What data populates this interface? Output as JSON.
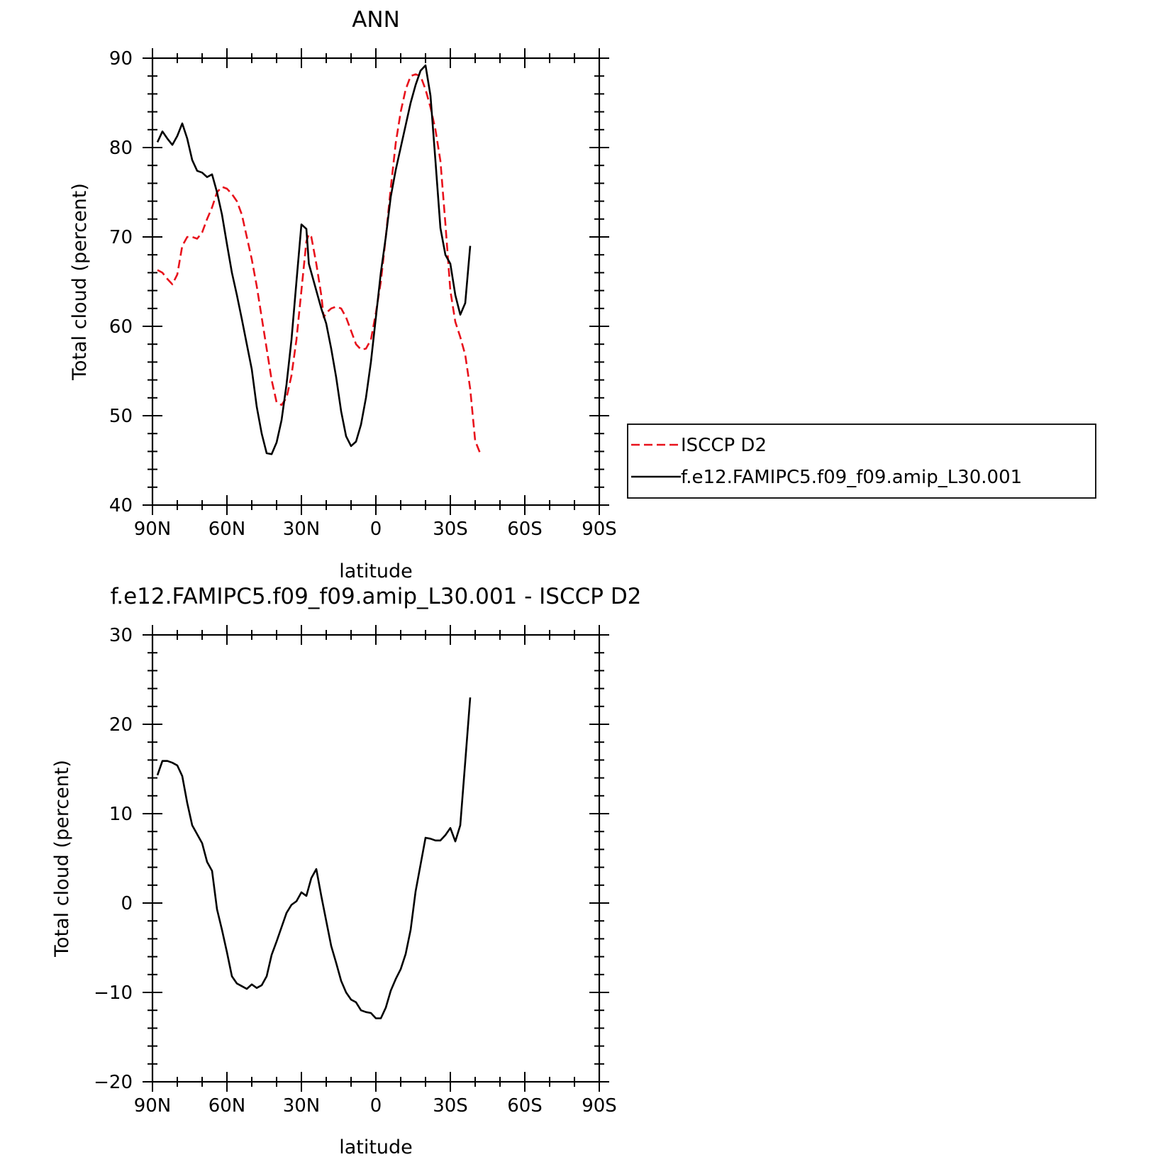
{
  "colors": {
    "isccp": "#e8111b",
    "model": "#000000",
    "axis": "#000000"
  },
  "chart_data": [
    {
      "type": "line",
      "title": "ANN",
      "xlabel": "latitude",
      "ylabel": "Total cloud (percent)",
      "xlim": [
        90,
        -90
      ],
      "ylim": [
        40,
        90
      ],
      "x_ticks": [
        {
          "value": 90,
          "label": "90N"
        },
        {
          "value": 60,
          "label": "60N"
        },
        {
          "value": 30,
          "label": "30N"
        },
        {
          "value": 0,
          "label": "0"
        },
        {
          "value": -30,
          "label": "30S"
        },
        {
          "value": -60,
          "label": "60S"
        },
        {
          "value": -90,
          "label": "90S"
        }
      ],
      "y_ticks": [
        40,
        50,
        60,
        70,
        80,
        90
      ],
      "legend": {
        "placement": "right"
      },
      "series": [
        {
          "name": "ISCCP D2",
          "color": "#e8111b",
          "dash": "dashed",
          "points": [
            [
              88,
              66.3
            ],
            [
              86,
              66.0
            ],
            [
              84,
              65.3
            ],
            [
              82,
              64.7
            ],
            [
              80,
              65.8
            ],
            [
              78,
              69.0
            ],
            [
              76,
              70.0
            ],
            [
              74,
              70.0
            ],
            [
              72,
              69.8
            ],
            [
              70,
              70.5
            ],
            [
              68,
              72.0
            ],
            [
              66,
              73.3
            ],
            [
              64,
              75.0
            ],
            [
              62,
              75.6
            ],
            [
              60,
              75.4
            ],
            [
              58,
              74.8
            ],
            [
              56,
              74.0
            ],
            [
              54,
              72.5
            ],
            [
              52,
              70.0
            ],
            [
              50,
              67.5
            ],
            [
              48,
              64.5
            ],
            [
              46,
              61.0
            ],
            [
              44,
              57.5
            ],
            [
              42,
              54.0
            ],
            [
              40,
              51.5
            ],
            [
              38,
              51.2
            ],
            [
              36,
              52.0
            ],
            [
              34,
              54.5
            ],
            [
              32,
              58.5
            ],
            [
              30,
              64.0
            ],
            [
              28,
              69.5
            ],
            [
              27,
              70.3
            ],
            [
              26,
              70.0
            ],
            [
              24,
              67.0
            ],
            [
              22,
              63.5
            ],
            [
              21,
              61.0
            ],
            [
              20,
              61.5
            ],
            [
              18,
              62.0
            ],
            [
              16,
              62.2
            ],
            [
              14,
              62.0
            ],
            [
              12,
              61.0
            ],
            [
              10,
              59.5
            ],
            [
              8,
              58.0
            ],
            [
              6,
              57.4
            ],
            [
              4,
              57.5
            ],
            [
              2,
              58.5
            ],
            [
              0,
              61.5
            ],
            [
              -2,
              65.0
            ],
            [
              -4,
              70.0
            ],
            [
              -6,
              75.5
            ],
            [
              -8,
              80.5
            ],
            [
              -10,
              84.0
            ],
            [
              -12,
              86.5
            ],
            [
              -14,
              88.0
            ],
            [
              -16,
              88.2
            ],
            [
              -18,
              88.0
            ],
            [
              -20,
              86.5
            ],
            [
              -22,
              84.5
            ],
            [
              -24,
              82.0
            ],
            [
              -26,
              78.5
            ],
            [
              -28,
              71.5
            ],
            [
              -30,
              64.0
            ],
            [
              -32,
              60.5
            ],
            [
              -34,
              58.8
            ],
            [
              -36,
              56.8
            ],
            [
              -38,
              53.0
            ],
            [
              -40,
              47.2
            ],
            [
              -42,
              45.8
            ]
          ]
        },
        {
          "name": "f.e12.FAMIPC5.f09_f09.amip_L30.001",
          "color": "#000000",
          "dash": "solid",
          "points": [
            [
              88,
              80.6
            ],
            [
              86,
              81.8
            ],
            [
              84,
              81.0
            ],
            [
              82,
              80.3
            ],
            [
              80,
              81.3
            ],
            [
              78,
              82.7
            ],
            [
              76,
              81.0
            ],
            [
              74,
              78.6
            ],
            [
              72,
              77.4
            ],
            [
              70,
              77.2
            ],
            [
              68,
              76.7
            ],
            [
              66,
              77.0
            ],
            [
              64,
              75.0
            ],
            [
              62,
              72.5
            ],
            [
              60,
              69.2
            ],
            [
              58,
              66.0
            ],
            [
              56,
              63.5
            ],
            [
              54,
              60.8
            ],
            [
              52,
              58.0
            ],
            [
              50,
              55.2
            ],
            [
              48,
              51.0
            ],
            [
              46,
              48.0
            ],
            [
              44,
              45.8
            ],
            [
              42,
              45.7
            ],
            [
              40,
              47.0
            ],
            [
              38,
              49.5
            ],
            [
              36,
              53.5
            ],
            [
              34,
              58.5
            ],
            [
              32,
              65.0
            ],
            [
              30,
              71.4
            ],
            [
              28,
              70.9
            ],
            [
              27,
              67.0
            ],
            [
              26,
              66.0
            ],
            [
              24,
              64.0
            ],
            [
              22,
              62.0
            ],
            [
              20,
              60.3
            ],
            [
              18,
              57.5
            ],
            [
              16,
              54.3
            ],
            [
              14,
              50.5
            ],
            [
              12,
              47.7
            ],
            [
              10,
              46.6
            ],
            [
              8,
              47.1
            ],
            [
              6,
              49.0
            ],
            [
              4,
              52.0
            ],
            [
              2,
              56.0
            ],
            [
              0,
              61.0
            ],
            [
              -2,
              66.0
            ],
            [
              -4,
              70.0
            ],
            [
              -6,
              74.5
            ],
            [
              -8,
              77.5
            ],
            [
              -10,
              80.0
            ],
            [
              -12,
              82.5
            ],
            [
              -14,
              85.0
            ],
            [
              -16,
              87.0
            ],
            [
              -18,
              88.6
            ],
            [
              -20,
              89.2
            ],
            [
              -22,
              85.8
            ],
            [
              -24,
              78.5
            ],
            [
              -26,
              71.0
            ],
            [
              -28,
              68.0
            ],
            [
              -30,
              67.0
            ],
            [
              -32,
              63.5
            ],
            [
              -34,
              61.3
            ],
            [
              -36,
              62.6
            ],
            [
              -38,
              69.0
            ]
          ]
        }
      ]
    },
    {
      "type": "line",
      "title": "f.e12.FAMIPC5.f09_f09.amip_L30.001 - ISCCP D2",
      "xlabel": "latitude",
      "ylabel": "Total cloud (percent)",
      "xlim": [
        90,
        -90
      ],
      "ylim": [
        -20,
        30
      ],
      "x_ticks": [
        {
          "value": 90,
          "label": "90N"
        },
        {
          "value": 60,
          "label": "60N"
        },
        {
          "value": 30,
          "label": "30N"
        },
        {
          "value": 0,
          "label": "0"
        },
        {
          "value": -30,
          "label": "30S"
        },
        {
          "value": -60,
          "label": "60S"
        },
        {
          "value": -90,
          "label": "90S"
        }
      ],
      "y_ticks": [
        {
          "value": -20,
          "label": "−20"
        },
        {
          "value": -10,
          "label": "−10"
        },
        {
          "value": 0,
          "label": "0"
        },
        {
          "value": 10,
          "label": "10"
        },
        {
          "value": 20,
          "label": "20"
        },
        {
          "value": 30,
          "label": "30"
        }
      ],
      "series": [
        {
          "color": "#000000",
          "dash": "solid",
          "points": [
            [
              88,
              14.3
            ],
            [
              86,
              15.9
            ],
            [
              84,
              15.9
            ],
            [
              82,
              15.7
            ],
            [
              80,
              15.4
            ],
            [
              78,
              14.2
            ],
            [
              76,
              11.2
            ],
            [
              74,
              8.7
            ],
            [
              72,
              7.7
            ],
            [
              70,
              6.7
            ],
            [
              68,
              4.6
            ],
            [
              66,
              3.6
            ],
            [
              64,
              -0.7
            ],
            [
              62,
              -3.0
            ],
            [
              60,
              -5.5
            ],
            [
              58,
              -8.2
            ],
            [
              56,
              -9.0
            ],
            [
              54,
              -9.3
            ],
            [
              52,
              -9.6
            ],
            [
              50,
              -9.1
            ],
            [
              48,
              -9.5
            ],
            [
              46,
              -9.2
            ],
            [
              44,
              -8.2
            ],
            [
              42,
              -5.8
            ],
            [
              40,
              -4.3
            ],
            [
              38,
              -2.7
            ],
            [
              36,
              -1.1
            ],
            [
              34,
              -0.2
            ],
            [
              32,
              0.2
            ],
            [
              30,
              1.2
            ],
            [
              28,
              0.8
            ],
            [
              26,
              2.8
            ],
            [
              24,
              3.8
            ],
            [
              22,
              0.8
            ],
            [
              20,
              -2.0
            ],
            [
              18,
              -4.8
            ],
            [
              16,
              -6.7
            ],
            [
              14,
              -8.7
            ],
            [
              12,
              -10.0
            ],
            [
              10,
              -10.8
            ],
            [
              8,
              -11.1
            ],
            [
              6,
              -12.0
            ],
            [
              4,
              -12.2
            ],
            [
              2,
              -12.3
            ],
            [
              0,
              -12.9
            ],
            [
              -2,
              -12.9
            ],
            [
              -4,
              -11.7
            ],
            [
              -6,
              -9.8
            ],
            [
              -8,
              -8.5
            ],
            [
              -10,
              -7.4
            ],
            [
              -12,
              -5.7
            ],
            [
              -14,
              -3.0
            ],
            [
              -16,
              1.3
            ],
            [
              -18,
              4.3
            ],
            [
              -20,
              7.3
            ],
            [
              -22,
              7.2
            ],
            [
              -24,
              7.0
            ],
            [
              -26,
              7.0
            ],
            [
              -28,
              7.6
            ],
            [
              -30,
              8.4
            ],
            [
              -32,
              6.9
            ],
            [
              -34,
              8.7
            ],
            [
              -36,
              15.8
            ],
            [
              -38,
              23.0
            ]
          ]
        }
      ]
    }
  ]
}
